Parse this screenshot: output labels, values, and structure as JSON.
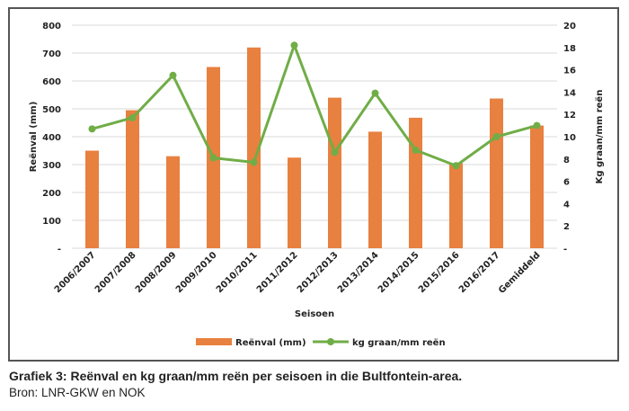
{
  "chart_data": {
    "type": "bar+line",
    "categories": [
      "2006/2007",
      "2007/2008",
      "2008/2009",
      "2009/2010",
      "2010/2011",
      "2011/2012",
      "2012/2013",
      "2013/2014",
      "2014/2015",
      "2015/2016",
      "2016/2017",
      "Gemiddeld"
    ],
    "series": [
      {
        "name": "Reënval (mm)",
        "type": "bar",
        "axis": "left",
        "color": "#E8803F",
        "values": [
          350,
          495,
          330,
          650,
          720,
          325,
          540,
          418,
          468,
          305,
          537,
          440
        ]
      },
      {
        "name": "kg graan/mm reën",
        "type": "line",
        "axis": "right",
        "color": "#70AD47",
        "values": [
          10.7,
          11.7,
          15.5,
          8.1,
          7.7,
          18.2,
          8.6,
          13.9,
          8.8,
          7.4,
          10.0,
          11.0
        ]
      }
    ],
    "xlabel": "Seisoen",
    "ylabel": "Reënval (mm)",
    "y2label": "Kg graan/mm reën",
    "ylim": [
      0,
      800
    ],
    "y2lim": [
      0,
      20
    ],
    "yticks": [
      "-",
      "100",
      "200",
      "300",
      "400",
      "500",
      "600",
      "700",
      "800"
    ],
    "y2ticks": [
      "-",
      "2",
      "4",
      "6",
      "8",
      "10",
      "12",
      "14",
      "16",
      "18",
      "20"
    ],
    "grid": true,
    "legend": "bottom"
  },
  "caption": "Grafiek 3: Reënval en kg graan/mm reën per seisoen in die Bultfontein-area.",
  "source": "Bron: LNR-GKW en NOK"
}
